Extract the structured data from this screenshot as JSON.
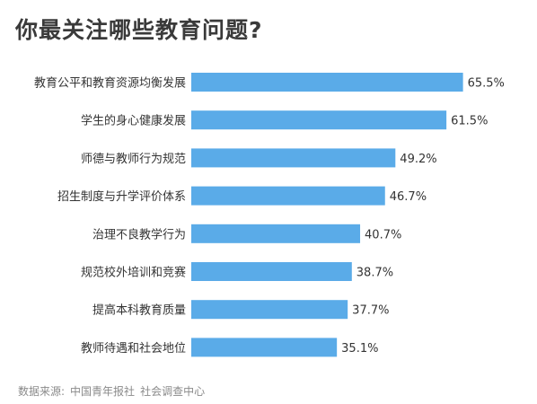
{
  "chart_data": {
    "type": "bar",
    "orientation": "horizontal",
    "title": "你最关注哪些教育问题?",
    "categories": [
      "教育公平和教育资源均衡发展",
      "学生的身心健康发展",
      "师德与教师行为规范",
      "招生制度与升学评价体系",
      "治理不良教学行为",
      "规范校外培训和竞赛",
      "提高本科教育质量",
      "教师待遇和社会地位"
    ],
    "values": [
      65.5,
      61.5,
      49.2,
      46.7,
      40.7,
      38.7,
      37.7,
      35.1
    ],
    "value_labels": [
      "65.5%",
      "61.5%",
      "49.2%",
      "46.7%",
      "40.7%",
      "38.7%",
      "37.7%",
      "35.1%"
    ],
    "unit": "%",
    "xlim": [
      0,
      100
    ],
    "grid": false,
    "legend": "none",
    "bar_color": "#5aabe8"
  },
  "source": {
    "label": "数据来源:",
    "org1": "中国青年报社",
    "org2": "社会调查中心"
  }
}
